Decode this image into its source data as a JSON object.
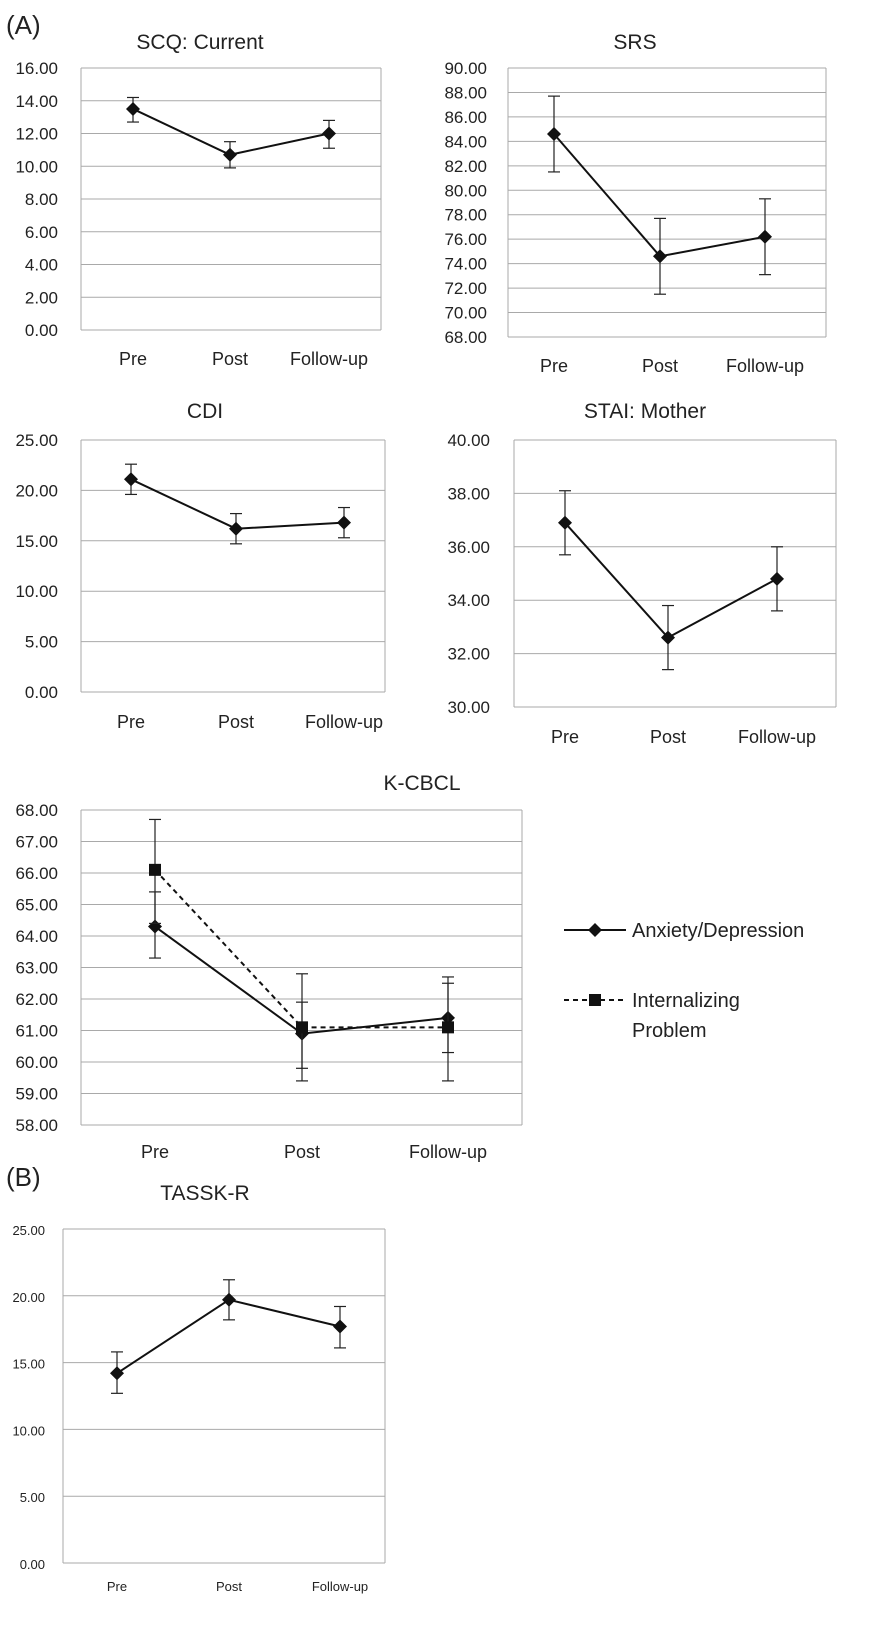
{
  "panels": {
    "a": "(A)",
    "b": "(B)"
  },
  "chart_data": [
    {
      "type": "line",
      "title": "SCQ: Current",
      "categories": [
        "Pre",
        "Post",
        "Follow-up"
      ],
      "ylim": [
        0,
        16
      ],
      "yticks": [
        "0.00",
        "2.00",
        "4.00",
        "6.00",
        "8.00",
        "10.00",
        "12.00",
        "14.00",
        "16.00"
      ],
      "grid": true,
      "series": [
        {
          "values": [
            13.5,
            10.7,
            12.0
          ],
          "err_low": [
            12.7,
            9.9,
            11.1
          ],
          "err_high": [
            14.2,
            11.5,
            12.8
          ],
          "marker": "diamond",
          "dash": false
        }
      ]
    },
    {
      "type": "line",
      "title": "SRS",
      "categories": [
        "Pre",
        "Post",
        "Follow-up"
      ],
      "ylim": [
        68,
        90
      ],
      "yticks": [
        "68.00",
        "70.00",
        "72.00",
        "74.00",
        "76.00",
        "78.00",
        "80.00",
        "82.00",
        "84.00",
        "86.00",
        "88.00",
        "90.00"
      ],
      "grid": true,
      "series": [
        {
          "values": [
            84.6,
            74.6,
            76.2
          ],
          "err_low": [
            81.5,
            71.5,
            73.1
          ],
          "err_high": [
            87.7,
            77.7,
            79.3
          ],
          "marker": "diamond",
          "dash": false
        }
      ]
    },
    {
      "type": "line",
      "title": "CDI",
      "categories": [
        "Pre",
        "Post",
        "Follow-up"
      ],
      "ylim": [
        0,
        25
      ],
      "yticks": [
        "0.00",
        "5.00",
        "10.00",
        "15.00",
        "20.00",
        "25.00"
      ],
      "grid": true,
      "series": [
        {
          "values": [
            21.1,
            16.2,
            16.8
          ],
          "err_low": [
            19.6,
            14.7,
            15.3
          ],
          "err_high": [
            22.6,
            17.7,
            18.3
          ],
          "marker": "diamond",
          "dash": false
        }
      ]
    },
    {
      "type": "line",
      "title": "STAI: Mother",
      "categories": [
        "Pre",
        "Post",
        "Follow-up"
      ],
      "ylim": [
        30,
        40
      ],
      "yticks": [
        "30.00",
        "32.00",
        "34.00",
        "36.00",
        "38.00",
        "40.00"
      ],
      "grid": true,
      "series": [
        {
          "values": [
            36.9,
            32.6,
            34.8
          ],
          "err_low": [
            35.7,
            31.4,
            33.6
          ],
          "err_high": [
            38.1,
            33.8,
            36.0
          ],
          "marker": "diamond",
          "dash": false
        }
      ]
    },
    {
      "type": "line",
      "title": "K-CBCL",
      "categories": [
        "Pre",
        "Post",
        "Follow-up"
      ],
      "ylim": [
        58,
        68
      ],
      "yticks": [
        "58.00",
        "59.00",
        "60.00",
        "61.00",
        "62.00",
        "63.00",
        "64.00",
        "65.00",
        "66.00",
        "67.00",
        "68.00"
      ],
      "grid": true,
      "legend": "right",
      "series": [
        {
          "name": "Anxiety/Depression",
          "values": [
            64.3,
            60.9,
            61.4
          ],
          "err_low": [
            63.3,
            59.8,
            60.3
          ],
          "err_high": [
            65.4,
            61.9,
            62.5
          ],
          "marker": "diamond",
          "dash": false
        },
        {
          "name": "Internalizing Problem",
          "values": [
            66.1,
            61.1,
            61.1
          ],
          "err_low": [
            64.4,
            59.4,
            59.4
          ],
          "err_high": [
            67.7,
            62.8,
            62.7
          ],
          "marker": "square",
          "dash": true
        }
      ]
    },
    {
      "type": "line",
      "title": "TASSK-R",
      "categories": [
        "Pre",
        "Post",
        "Follow-up"
      ],
      "ylim": [
        0,
        25
      ],
      "yticks": [
        "0.00",
        "5.00",
        "10.00",
        "15.00",
        "20.00",
        "25.00"
      ],
      "grid": true,
      "series": [
        {
          "values": [
            14.2,
            19.7,
            17.7
          ],
          "err_low": [
            12.7,
            18.2,
            16.1
          ],
          "err_high": [
            15.8,
            21.2,
            19.2
          ],
          "marker": "diamond",
          "dash": false
        }
      ]
    }
  ]
}
